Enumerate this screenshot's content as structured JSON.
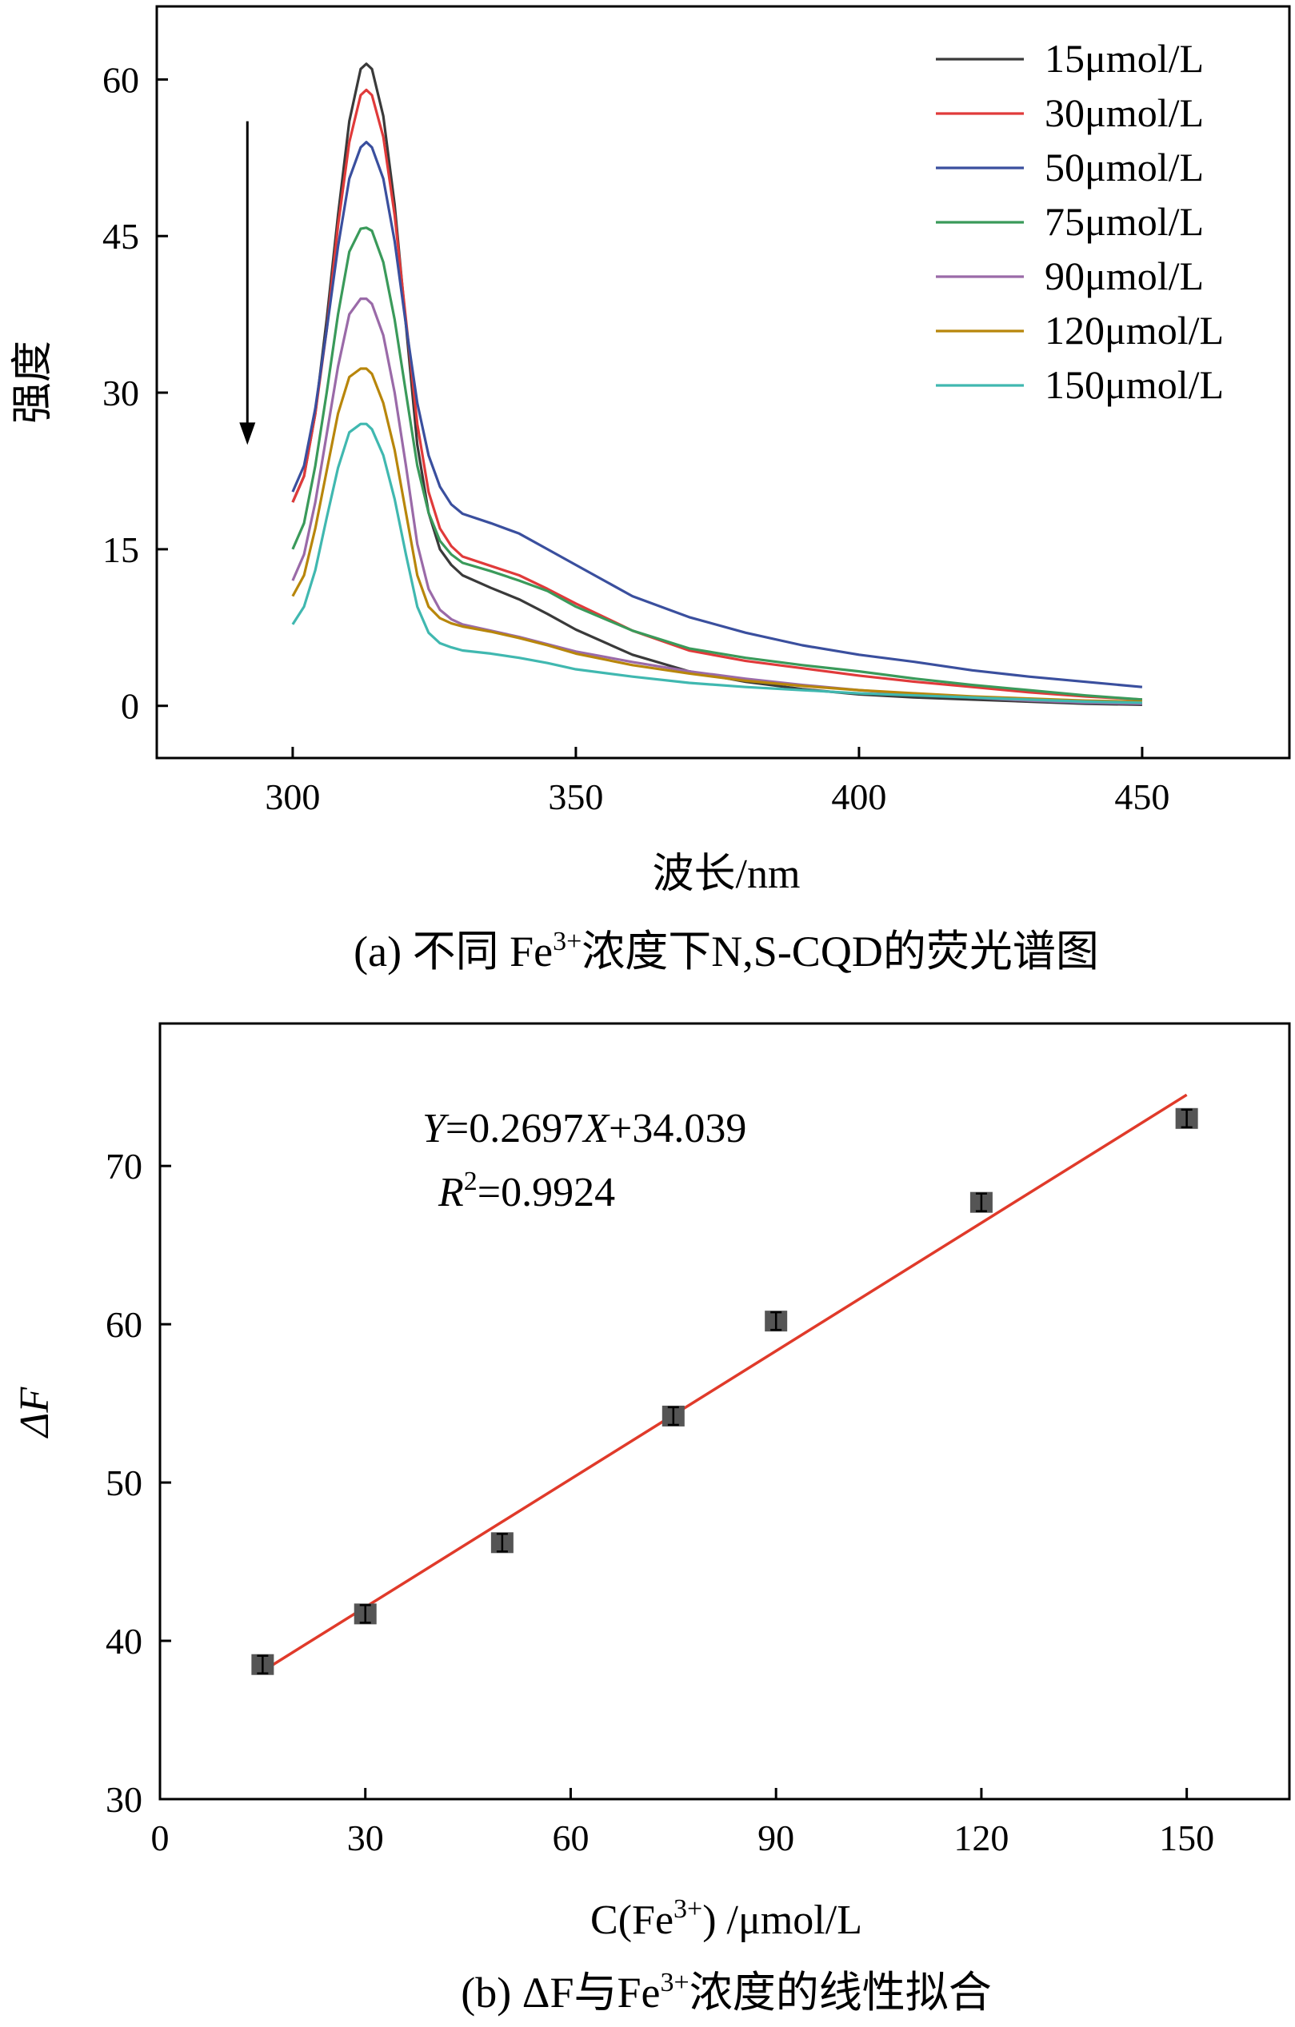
{
  "chart_data": [
    {
      "type": "line",
      "caption": {
        "prefix": "(a) 不同 Fe",
        "sup": "3+",
        "suffix": "浓度下N,S-CQD的荧光谱图"
      },
      "xlabel": "波长/nm",
      "ylabel": "强度",
      "xlim": [
        276,
        476
      ],
      "ylim": [
        -5,
        67
      ],
      "xticks": [
        300,
        350,
        400,
        450
      ],
      "yticks": [
        0,
        15,
        30,
        45,
        60
      ],
      "x_tick_labels": [
        "300",
        "350",
        "400",
        "450"
      ],
      "y_tick_labels": [
        "0",
        "15",
        "30",
        "45",
        "60"
      ],
      "arrow": {
        "x": 292,
        "from": 56,
        "to": 25,
        "meaning": "intensity decreases with increasing Fe3+ concentration"
      },
      "x": [
        300,
        302,
        304,
        306,
        308,
        310,
        312,
        313,
        314,
        316,
        318,
        320,
        322,
        324,
        326,
        328,
        330,
        335,
        340,
        345,
        350,
        360,
        370,
        380,
        390,
        400,
        410,
        420,
        430,
        440,
        450
      ],
      "series": [
        {
          "name": "15μmol/L",
          "color": "#3a3a3a",
          "values": [
            19.5,
            22,
            28,
            37,
            47,
            56,
            61,
            61.5,
            61,
            56.5,
            48,
            36.5,
            25,
            18.5,
            15,
            13.5,
            12.5,
            11.3,
            10.2,
            8.8,
            7.3,
            4.9,
            3.3,
            2.3,
            1.6,
            1.1,
            0.8,
            0.6,
            0.4,
            0.2,
            0.1
          ]
        },
        {
          "name": "30μmol/L",
          "color": "#e03a3a",
          "values": [
            19.5,
            22,
            28,
            36,
            46,
            54,
            58.5,
            59,
            58.5,
            54.5,
            47,
            37,
            27,
            20.5,
            17,
            15.3,
            14.3,
            13.4,
            12.5,
            11.2,
            9.8,
            7.2,
            5.3,
            4.3,
            3.6,
            2.9,
            2.3,
            1.8,
            1.3,
            0.9,
            0.6
          ]
        },
        {
          "name": "50μmol/L",
          "color": "#3a4f9e",
          "values": [
            20.5,
            23,
            28.5,
            36,
            44,
            50.5,
            53.5,
            54,
            53.5,
            50.5,
            44.5,
            36.5,
            29,
            24,
            21,
            19.3,
            18.4,
            17.5,
            16.5,
            15,
            13.5,
            10.5,
            8.5,
            7,
            5.8,
            4.9,
            4.2,
            3.4,
            2.8,
            2.3,
            1.8
          ]
        },
        {
          "name": "75μmol/L",
          "color": "#3a9a5a",
          "values": [
            15,
            17.5,
            23,
            30,
            37.5,
            43.5,
            45.7,
            45.8,
            45.5,
            42.5,
            37,
            30,
            23,
            18.5,
            15.8,
            14.5,
            13.7,
            12.9,
            12,
            11,
            9.5,
            7.2,
            5.5,
            4.6,
            3.9,
            3.3,
            2.6,
            2,
            1.5,
            1,
            0.6
          ]
        },
        {
          "name": "90μmol/L",
          "color": "#9a6aa8",
          "values": [
            12,
            14.5,
            19.5,
            26,
            32.5,
            37.5,
            39,
            39,
            38.5,
            35.5,
            30,
            23,
            15.5,
            11.2,
            9.2,
            8.3,
            7.8,
            7.2,
            6.6,
            5.9,
            5.2,
            4.2,
            3.3,
            2.6,
            2,
            1.5,
            1.1,
            0.8,
            0.5,
            0.3,
            0.2
          ]
        },
        {
          "name": "120μmol/L",
          "color": "#b8860b",
          "values": [
            10.5,
            12.5,
            17,
            22.5,
            28,
            31.5,
            32.3,
            32.3,
            31.8,
            29,
            24.5,
            18.5,
            12.5,
            9.5,
            8.4,
            7.9,
            7.6,
            7.1,
            6.5,
            5.8,
            5,
            3.9,
            3.1,
            2.4,
            1.9,
            1.5,
            1.2,
            0.9,
            0.7,
            0.5,
            0.4
          ]
        },
        {
          "name": "150μmol/L",
          "color": "#40b8b0",
          "values": [
            7.8,
            9.5,
            13,
            18,
            22.8,
            26.2,
            27,
            27,
            26.5,
            24,
            19.8,
            14.5,
            9.5,
            7,
            6,
            5.6,
            5.3,
            5,
            4.6,
            4.1,
            3.5,
            2.8,
            2.2,
            1.8,
            1.5,
            1.2,
            1,
            0.8,
            0.6,
            0.4,
            0.3
          ]
        }
      ],
      "legend": "top-right"
    },
    {
      "type": "scatter",
      "caption": {
        "prefix": "(b) ΔF与Fe",
        "sup": "3+",
        "suffix": "浓度的线性拟合"
      },
      "xlabel": {
        "prefix": "C(Fe",
        "sup": "3+",
        "suffix": ") /μmol/L"
      },
      "ylabel": "ΔF",
      "xlim": [
        0,
        165
      ],
      "ylim": [
        30,
        79
      ],
      "xticks": [
        0,
        30,
        60,
        90,
        120,
        150
      ],
      "yticks": [
        30,
        40,
        50,
        60,
        70
      ],
      "x_tick_labels": [
        "0",
        "30",
        "60",
        "90",
        "120",
        "150"
      ],
      "y_tick_labels": [
        "30",
        "40",
        "50",
        "60",
        "70"
      ],
      "points": {
        "x": [
          15,
          30,
          50,
          75,
          90,
          120,
          150
        ],
        "y": [
          38.5,
          41.7,
          46.2,
          54.2,
          60.2,
          67.7,
          73
        ]
      },
      "fit": {
        "slope": 0.2697,
        "intercept": 34.039,
        "x_range": [
          15,
          150
        ],
        "color": "#e03a2a"
      },
      "equation": {
        "y_var": "Y",
        "mid": "=0.2697",
        "x_var": "X",
        "rest": "+34.039"
      },
      "r2": {
        "var": "R",
        "sup": "2",
        "value": "=0.9924"
      }
    }
  ]
}
